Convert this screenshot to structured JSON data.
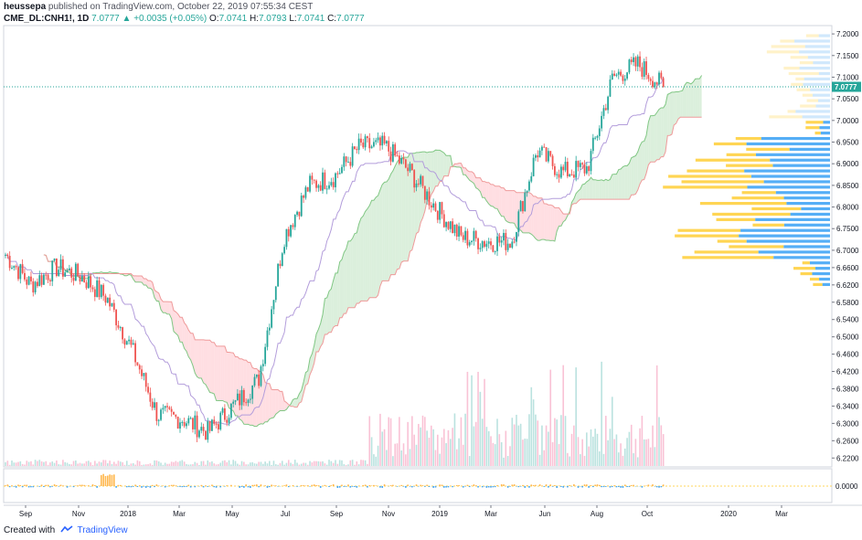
{
  "header": {
    "author": "heussepa",
    "publish_text": "published on TradingView.com, October 22, 2019 07:55:34 CEST",
    "symbol": "CME_DL:CNH1!, 1D",
    "last": "7.0777",
    "change_arrow": "▲",
    "change": "+0.0035 (+0.05%)",
    "o_label": "O:",
    "o_value": "7.0741",
    "h_label": "H:",
    "h_value": "7.0793",
    "l_label": "L:",
    "l_value": "7.0741",
    "c_label": "C:",
    "c_value": "7.0777"
  },
  "price_axis": {
    "ticks": [
      "7.2000",
      "7.1500",
      "7.1000",
      "7.0500",
      "7.0000",
      "6.9500",
      "6.9000",
      "6.8500",
      "6.8000",
      "6.7500",
      "6.7000",
      "6.6600",
      "6.6200",
      "6.5800",
      "6.5400",
      "6.5000",
      "6.4600",
      "6.4200",
      "6.3800",
      "6.3400",
      "6.3000",
      "6.2600",
      "6.2200"
    ],
    "tick_values": [
      7.2,
      7.15,
      7.1,
      7.05,
      7.0,
      6.95,
      6.9,
      6.85,
      6.8,
      6.75,
      6.7,
      6.66,
      6.62,
      6.58,
      6.54,
      6.5,
      6.46,
      6.42,
      6.38,
      6.34,
      6.3,
      6.26,
      6.22
    ],
    "last_price_label": "7.0777",
    "last_price_value": 7.0777,
    "osc_tick": "0.0000"
  },
  "time_axis": {
    "labels": [
      "Sep",
      "Nov",
      "2018",
      "Mar",
      "May",
      "Jul",
      "Sep",
      "Nov",
      "2019",
      "Mar",
      "Jun",
      "Aug",
      "Oct",
      "2020",
      "Mar"
    ]
  },
  "footer": {
    "created_with": "Created with",
    "brand": "TradingView"
  },
  "colors": {
    "up": "#26a69a",
    "down": "#ef5350",
    "cloud_green": "#c8e6c9",
    "cloud_red": "#ffcdd2",
    "span_a": "#81c784",
    "span_b": "#ef9a9a",
    "conversion": "#b39ddb",
    "vp_up": "#42a5f5",
    "vp_down": "#ffca28",
    "last_line": "#26a69a"
  },
  "chart_data": {
    "type": "candlestick",
    "symbol": "CME_DL:CNH1!",
    "interval": "1D",
    "y_range": [
      6.21,
      7.215
    ],
    "close_path_approx": [
      [
        "2017-08",
        6.69
      ],
      [
        "2017-09",
        6.62
      ],
      [
        "2017-10",
        6.66
      ],
      [
        "2017-11",
        6.64
      ],
      [
        "2017-12",
        6.59
      ],
      [
        "2018-01",
        6.47
      ],
      [
        "2018-02",
        6.32
      ],
      [
        "2018-03",
        6.31
      ],
      [
        "2018-04",
        6.28
      ],
      [
        "2018-05",
        6.34
      ],
      [
        "2018-06",
        6.4
      ],
      [
        "2018-07",
        6.73
      ],
      [
        "2018-08",
        6.85
      ],
      [
        "2018-09",
        6.87
      ],
      [
        "2018-10",
        6.94
      ],
      [
        "2018-11",
        6.94
      ],
      [
        "2018-12",
        6.88
      ],
      [
        "2019-01",
        6.8
      ],
      [
        "2019-02",
        6.73
      ],
      [
        "2019-03",
        6.72
      ],
      [
        "2019-04",
        6.72
      ],
      [
        "2019-05",
        6.93
      ],
      [
        "2019-06",
        6.88
      ],
      [
        "2019-07",
        6.89
      ],
      [
        "2019-08",
        7.1
      ],
      [
        "2019-09",
        7.13
      ],
      [
        "2019-10",
        7.0777
      ]
    ]
  }
}
